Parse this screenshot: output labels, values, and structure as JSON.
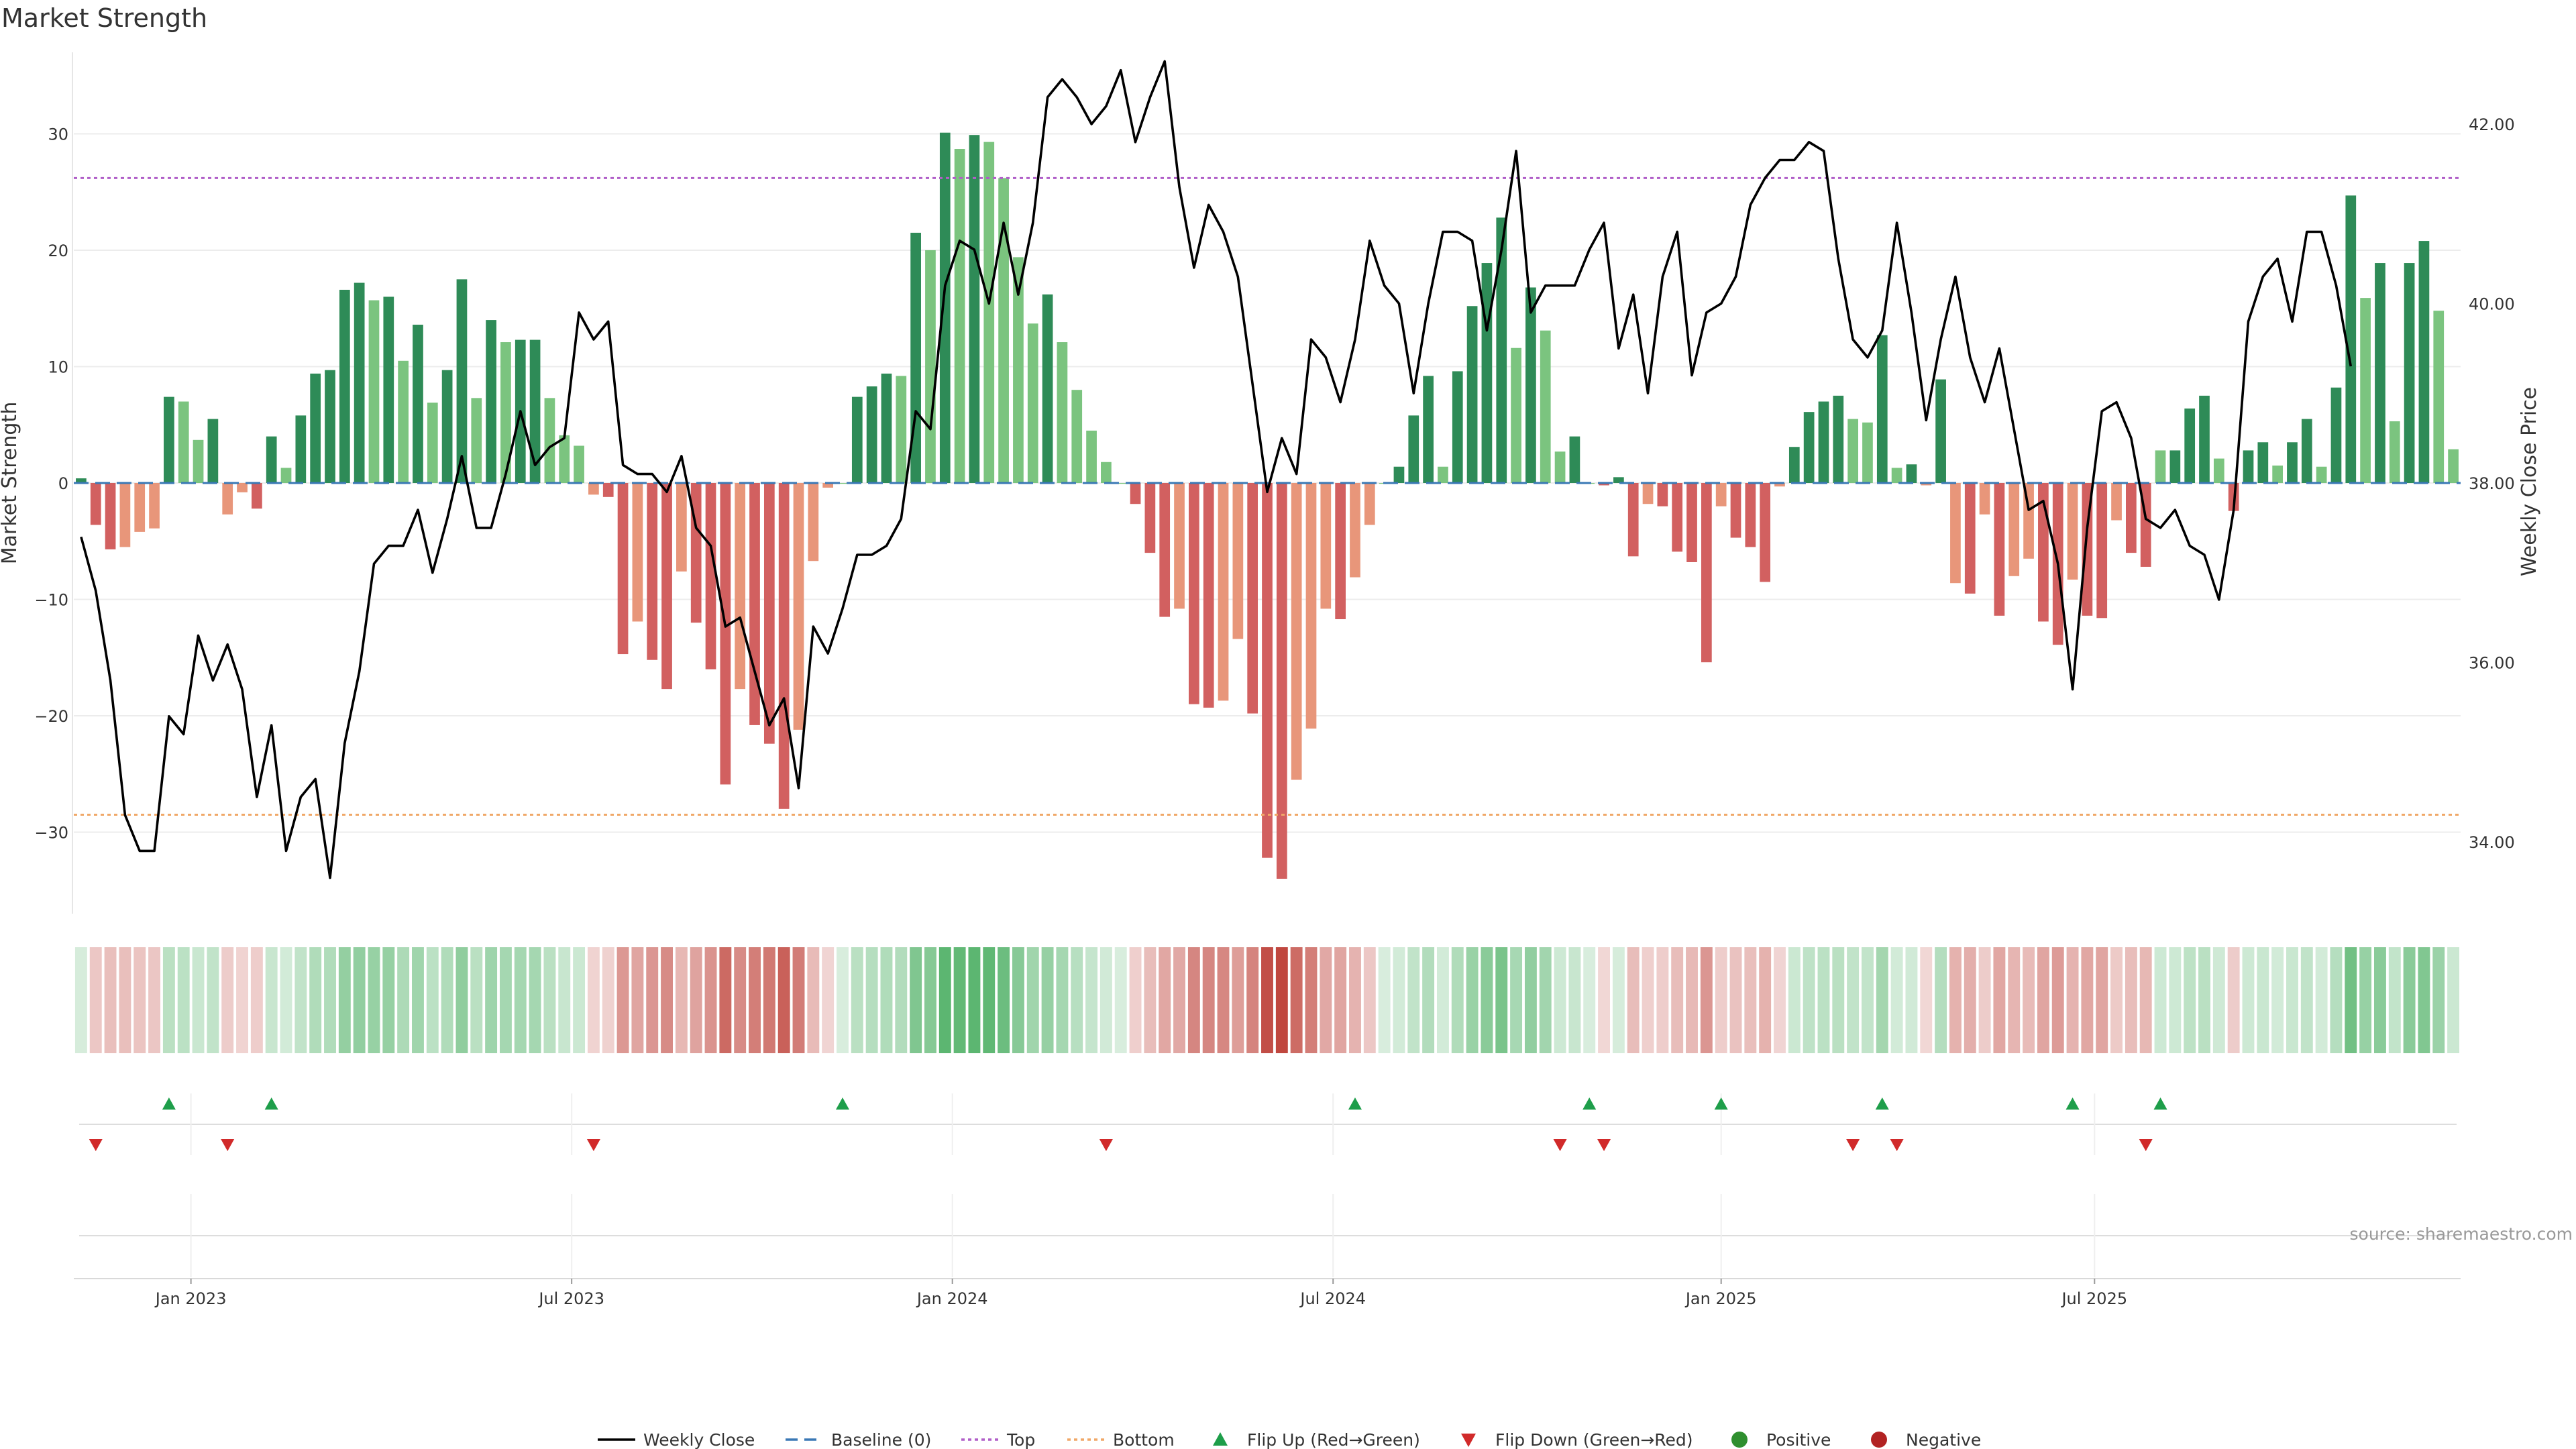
{
  "chart_data": {
    "type": "bar+line",
    "title": "Market Strength",
    "ylabel_left": "Market Strength",
    "ylabel_right": "Weekly Close Price",
    "source_note": "source: sharemaestro.com",
    "left_axis": {
      "range": [
        -37,
        37
      ],
      "ticks": [
        "30",
        "20",
        "10",
        "0",
        "−10",
        "−20",
        "−30"
      ],
      "tick_values": [
        30,
        20,
        10,
        0,
        -10,
        -20,
        -30
      ]
    },
    "right_axis": {
      "range": [
        33.2,
        42.8
      ],
      "ticks": [
        "42.00",
        "40.00",
        "38.00",
        "36.00",
        "34.00"
      ],
      "tick_values": [
        42,
        40,
        38,
        36,
        34
      ]
    },
    "x_axis": {
      "ticks": [
        "Jan 2023",
        "Jul 2023",
        "Jan 2024",
        "Jul 2024",
        "Jan 2025",
        "Jul 2025"
      ],
      "tick_weeks": [
        7.5,
        33.5,
        59.5,
        85.5,
        112,
        137.5
      ]
    },
    "reference_lines": {
      "top": 26.2,
      "bottom": -28.5,
      "baseline": 0
    },
    "colors": {
      "strong_green": "#2e8b57",
      "light_green": "#7bc47f",
      "strong_red": "#d26060",
      "light_red": "#e8967a",
      "line": "#000000",
      "top_line": "#b05fc8",
      "bottom_line": "#f0a868",
      "baseline": "#3a78b5",
      "flip_up": "#1e9e4a",
      "flip_down": "#d12a2a",
      "positive": "#2f8f2f",
      "negative": "#b22222",
      "source": "#999999"
    },
    "strength": [
      0.4,
      -3.6,
      -5.7,
      -5.5,
      -4.2,
      -3.9,
      7.4,
      7.0,
      3.7,
      5.5,
      -2.7,
      -0.8,
      -2.2,
      4.0,
      1.3,
      5.8,
      9.4,
      9.7,
      16.6,
      17.2,
      15.7,
      16.0,
      10.5,
      13.6,
      6.9,
      9.7,
      17.5,
      7.3,
      14.0,
      12.1,
      12.3,
      12.3,
      7.3,
      4.1,
      3.2,
      -1.0,
      -1.2,
      -14.7,
      -11.9,
      -15.2,
      -17.7,
      -7.6,
      -12.0,
      -16.0,
      -25.9,
      -17.7,
      -20.8,
      -22.4,
      -28.0,
      -21.2,
      -6.7,
      -0.4,
      0.0,
      7.4,
      8.3,
      9.4,
      9.2,
      21.5,
      20.0,
      30.1,
      28.7,
      29.9,
      29.3,
      26.2,
      19.4,
      13.7,
      16.2,
      12.1,
      8.0,
      4.5,
      1.8,
      0.0,
      -1.8,
      -6.0,
      -11.5,
      -10.8,
      -19.0,
      -19.3,
      -18.7,
      -13.4,
      -19.8,
      -32.2,
      -34.0,
      -25.5,
      -21.1,
      -10.8,
      -11.7,
      -8.1,
      -3.6,
      0.0,
      1.4,
      5.8,
      9.2,
      1.4,
      9.6,
      15.2,
      18.9,
      22.8,
      11.6,
      16.8,
      13.1,
      2.7,
      4.0,
      0.0,
      -0.2,
      0.5,
      -6.3,
      -1.8,
      -2.0,
      -5.9,
      -6.8,
      -15.4,
      -2.0,
      -4.7,
      -5.5,
      -8.5,
      -0.3,
      3.1,
      6.1,
      7.0,
      7.5,
      5.5,
      5.2,
      12.7,
      1.3,
      1.6,
      -0.2,
      8.9,
      -8.6,
      -9.5,
      -2.7,
      -11.4,
      -8.0,
      -6.5,
      -11.9,
      -13.9,
      -8.3,
      -11.4,
      -11.6,
      -3.2,
      -6.0,
      -7.2,
      2.8,
      2.8,
      6.4,
      7.5,
      2.1,
      -2.4,
      2.8,
      3.5,
      1.5,
      3.5,
      5.5,
      1.4,
      8.2,
      24.7,
      15.9,
      18.9,
      5.3,
      18.9,
      20.8,
      14.8,
      2.9
    ],
    "price": [
      37.4,
      36.8,
      35.8,
      34.3,
      33.9,
      33.9,
      35.4,
      35.2,
      36.3,
      35.8,
      36.2,
      35.7,
      34.5,
      35.3,
      33.9,
      34.5,
      34.7,
      33.6,
      35.1,
      35.9,
      37.1,
      37.3,
      37.3,
      37.7,
      37.0,
      37.6,
      38.3,
      37.5,
      37.5,
      38.1,
      38.8,
      38.2,
      38.4,
      38.5,
      39.9,
      39.6,
      39.8,
      38.2,
      38.1,
      38.1,
      37.9,
      38.3,
      37.5,
      37.3,
      36.4,
      36.5,
      35.9,
      35.3,
      35.6,
      34.6,
      36.4,
      36.1,
      36.6,
      37.2,
      37.2,
      37.3,
      37.6,
      38.8,
      38.6,
      40.2,
      40.7,
      40.6,
      40.0,
      40.9,
      40.1,
      40.9,
      42.3,
      42.5,
      42.3,
      42.0,
      42.2,
      42.6,
      41.8,
      42.3,
      42.7,
      41.3,
      40.4,
      41.1,
      40.8,
      40.3,
      39.1,
      37.9,
      38.5,
      38.1,
      39.6,
      39.4,
      38.9,
      39.6,
      40.7,
      40.2,
      40.0,
      39.0,
      40.0,
      40.8,
      40.8,
      40.7,
      39.7,
      40.6,
      41.7,
      39.9,
      40.2,
      40.2,
      40.2,
      40.6,
      40.9,
      39.5,
      40.1,
      39.0,
      40.3,
      40.8,
      39.2,
      39.9,
      40.0,
      40.3,
      41.1,
      41.4,
      41.6,
      41.6,
      41.8,
      41.7,
      40.5,
      39.6,
      39.4,
      39.7,
      40.9,
      39.9,
      38.7,
      39.6,
      40.3,
      39.4,
      38.9,
      39.5,
      38.6,
      37.7,
      37.8,
      37.1,
      35.7,
      37.5,
      38.8,
      38.9,
      38.5,
      37.6,
      37.5,
      37.7,
      37.3,
      37.2,
      36.7,
      37.7,
      39.8,
      40.3,
      40.5,
      39.8,
      40.8,
      40.8,
      40.2,
      39.3
    ],
    "flip_up_weeks": [
      6,
      13,
      52,
      87,
      103,
      112,
      123,
      136,
      142
    ],
    "flip_down_weeks": [
      1,
      10,
      35,
      70,
      101,
      104,
      121,
      124,
      141
    ],
    "legend": [
      "Weekly Close",
      "Baseline (0)",
      "Top",
      "Bottom",
      "Flip Up (Red→Green)",
      "Flip Down (Green→Red)",
      "Positive",
      "Negative"
    ]
  }
}
